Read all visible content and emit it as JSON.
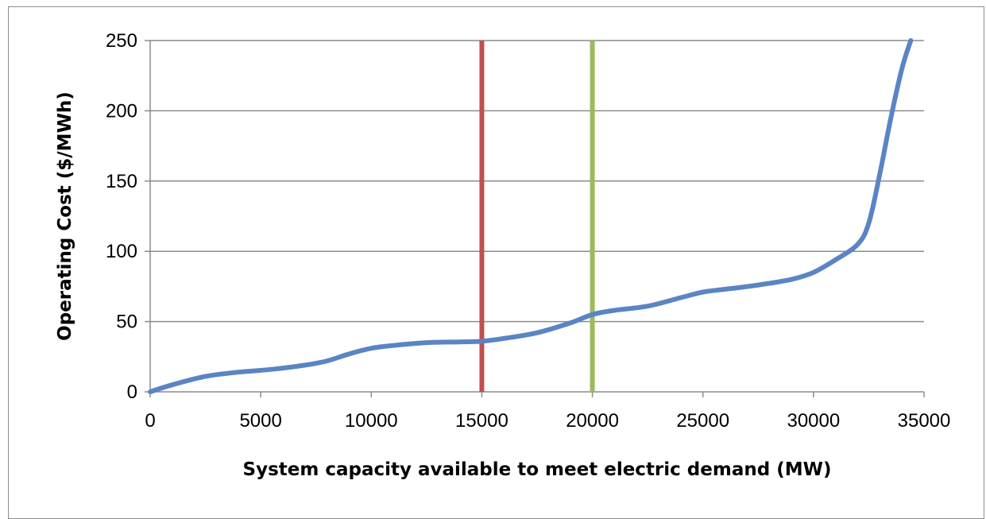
{
  "chart_data": {
    "type": "line",
    "title": "",
    "xlabel": "System capacity available to meet electric demand (MW)",
    "ylabel": "Operating Cost ($/MWh)",
    "xlim": [
      0,
      35000
    ],
    "ylim": [
      0,
      250
    ],
    "x_ticks": [
      "0",
      "5000",
      "10000",
      "15000",
      "20000",
      "25000",
      "30000",
      "35000"
    ],
    "y_ticks": [
      "0",
      "50",
      "100",
      "150",
      "200",
      "250"
    ],
    "grid": "horizontal",
    "legend": "none",
    "series": [
      {
        "color": "#5b84c4",
        "x": [
          0,
          1000,
          2500,
          4000,
          5500,
          7000,
          8000,
          9000,
          10000,
          11000,
          12500,
          14000,
          15000,
          16000,
          17500,
          19000,
          20000,
          21000,
          22500,
          24000,
          25000,
          26000,
          27500,
          29000,
          30000,
          31000,
          32000,
          32500,
          33000,
          33500,
          34000,
          34400
        ],
        "values": [
          0,
          5,
          11,
          14,
          16,
          19,
          22,
          27,
          31,
          33,
          35,
          35.5,
          36,
          38,
          42,
          49,
          55,
          58,
          61,
          67,
          71,
          73,
          76,
          80,
          85,
          94,
          105,
          120,
          155,
          195,
          230,
          250
        ]
      }
    ],
    "vertical_lines": [
      {
        "x": 15000,
        "color": "#c0504d"
      },
      {
        "x": 20000,
        "color": "#9bbb59"
      }
    ]
  }
}
